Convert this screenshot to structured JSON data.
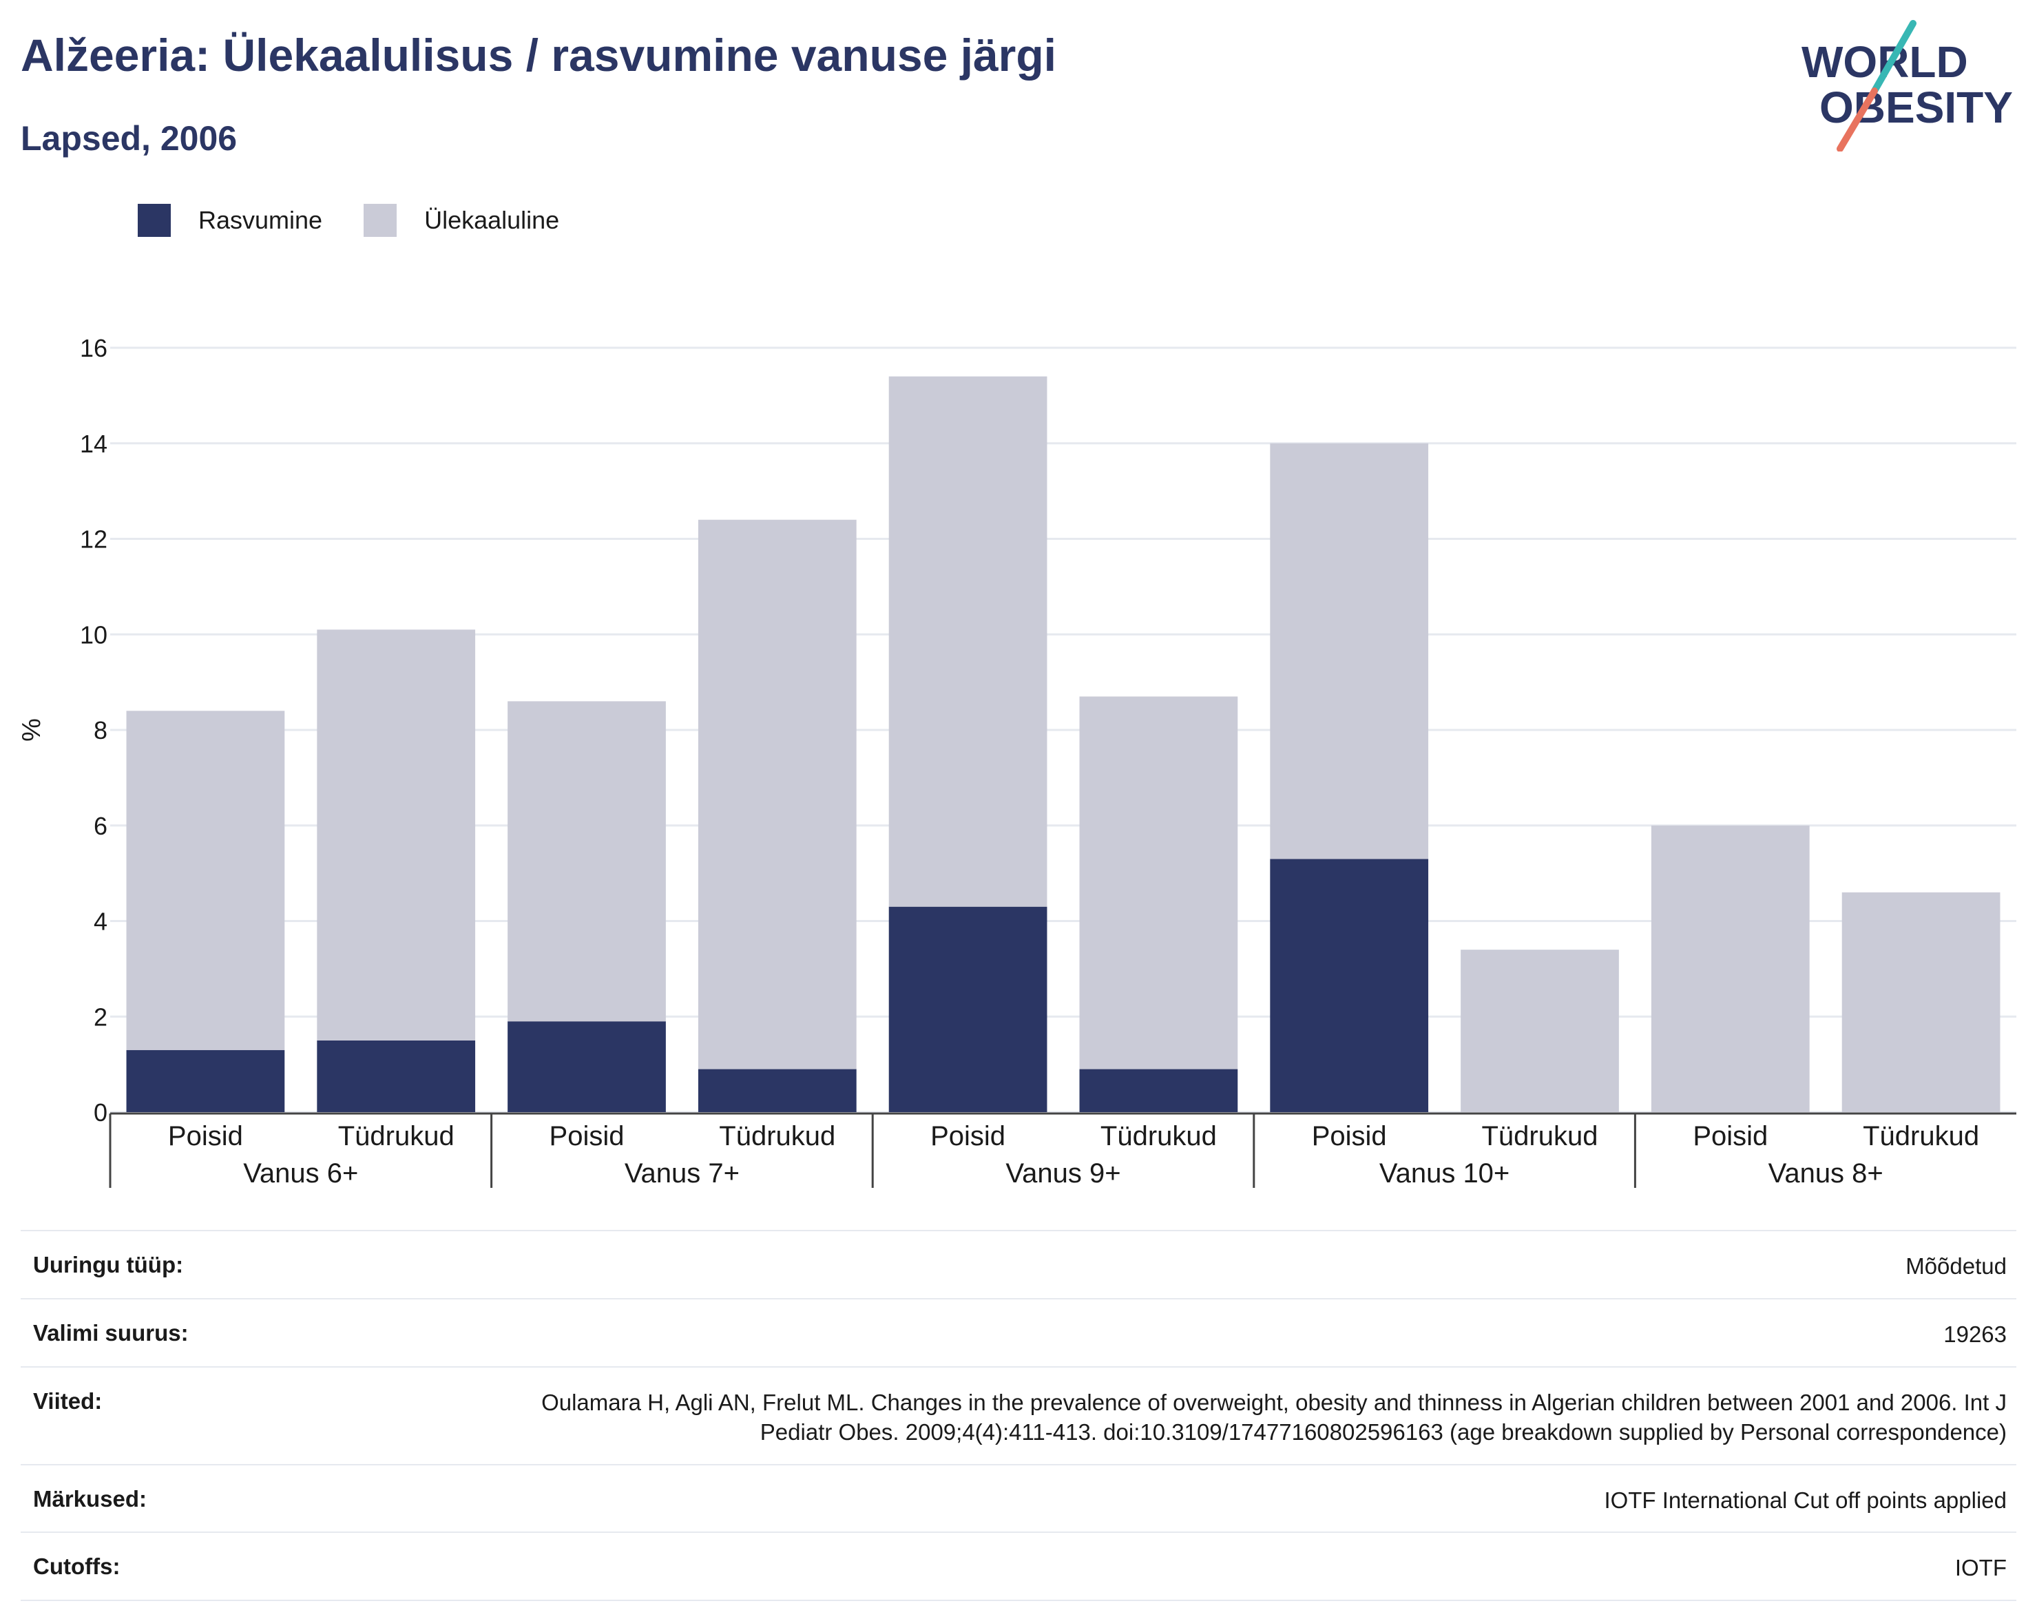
{
  "header": {
    "title": "Alžeeria: Ülekaalulisus / rasvumine vanuse järgi",
    "subtitle": "Lapsed, 2006"
  },
  "logo": {
    "line1": "WORLD",
    "line2": "OBESITY",
    "colors": {
      "text": "#2b3664",
      "slash_top": "#38b7b4",
      "slash_bottom": "#e8735e"
    }
  },
  "legend": [
    {
      "label": "Rasvumine",
      "color": "#2b3664"
    },
    {
      "label": "Ülekaaluline",
      "color": "#cacbd7"
    }
  ],
  "chart_data": {
    "type": "bar",
    "stacked": true,
    "ylabel": "%",
    "ylim": [
      0,
      16
    ],
    "yticks": [
      0,
      2,
      4,
      6,
      8,
      10,
      12,
      14,
      16
    ],
    "grid": true,
    "legend_position": "top-left",
    "groups": [
      {
        "label": "Vanus 6+",
        "categories": [
          "Poisid",
          "Tüdrukud"
        ]
      },
      {
        "label": "Vanus 7+",
        "categories": [
          "Poisid",
          "Tüdrukud"
        ]
      },
      {
        "label": "Vanus 9+",
        "categories": [
          "Poisid",
          "Tüdrukud"
        ]
      },
      {
        "label": "Vanus 10+",
        "categories": [
          "Poisid",
          "Tüdrukud"
        ]
      },
      {
        "label": "Vanus 8+",
        "categories": [
          "Poisid",
          "Tüdrukud"
        ]
      }
    ],
    "series": [
      {
        "name": "Rasvumine",
        "color": "#2b3664",
        "values": [
          1.3,
          1.5,
          1.9,
          0.9,
          4.3,
          0.9,
          5.3,
          0,
          0,
          0
        ]
      },
      {
        "name": "Ülekaaluline",
        "color": "#cacbd7",
        "values": [
          7.1,
          8.6,
          6.7,
          11.5,
          11.1,
          7.8,
          8.7,
          3.4,
          6.0,
          4.6
        ]
      }
    ]
  },
  "info": [
    {
      "label": "Uuringu tüüp:",
      "value": "Mõõdetud"
    },
    {
      "label": "Valimi suurus:",
      "value": "19263"
    },
    {
      "label": "Viited:",
      "value": "Oulamara H, Agli AN, Frelut ML. Changes in the prevalence of overweight, obesity and thinness in Algerian children between 2001 and 2006. Int J Pediatr Obes. 2009;4(4):411-413. doi:10.3109/17477160802596163 (age breakdown supplied by Personal correspondence)"
    },
    {
      "label": "Märkused:",
      "value": "IOTF International Cut off points applied"
    },
    {
      "label": "Cutoffs:",
      "value": "IOTF"
    }
  ]
}
